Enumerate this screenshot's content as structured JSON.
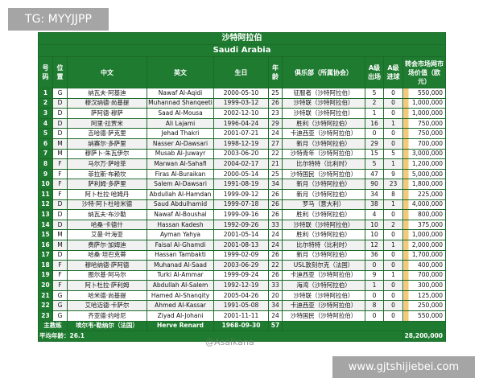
{
  "watermarks": {
    "top_left": "TG: MYYJJPP",
    "bottom_right": "www.gjtshijiebei.com",
    "center": "@Asaikana"
  },
  "table": {
    "title_cn": "沙特阿拉伯",
    "title_en": "Saudi Arabia",
    "header": [
      "号码",
      "位置",
      "中文",
      "英文",
      "生日",
      "年龄",
      "俱乐部（所属协会）",
      "A级出场",
      "A级进球",
      "转会市场网市场价值（欧元）"
    ],
    "rows": [
      [
        1,
        "G",
        "纳瓦夫·阿基迪",
        "Nawaf Al-Aqidi",
        "2000-05-10",
        25,
        "征服者（沙特阿拉伯）",
        5,
        0,
        "550,000"
      ],
      [
        2,
        "D",
        "穆汉纳德·尚基提",
        "Muhannad Shanqeeti",
        "1999-03-12",
        26,
        "沙特联（沙特阿拉伯）",
        2,
        0,
        "1,000,000"
      ],
      [
        3,
        "D",
        "萨阿德·穆萨",
        "Saad Al-Mousa",
        "2002-12-10",
        23,
        "沙特联（沙特阿拉伯）",
        1,
        0,
        "1,000,000"
      ],
      [
        4,
        "D",
        "阿里·拉贾米",
        "Ali Lajami",
        "1996-04-24",
        29,
        "胜利（沙特阿拉伯）",
        16,
        1,
        "750,000"
      ],
      [
        5,
        "D",
        "吉哈德·萨克里",
        "Jehad Thakri",
        "2001-07-21",
        24,
        "卡迪西亚（沙特阿拉伯）",
        0,
        0,
        "750,000"
      ],
      [
        6,
        "M",
        "纳赛尔·多萨里",
        "Nasser Al-Dawsari",
        "1998-12-19",
        27,
        "新月（沙特阿拉伯）",
        29,
        0,
        "700,000"
      ],
      [
        7,
        "M",
        "穆萨卜·朱瓦伊尔",
        "Musab Al-Juwayr",
        "2003-06-20",
        22,
        "沙特青年（沙特阿拉伯）",
        15,
        5,
        "3,000,000"
      ],
      [
        8,
        "F",
        "马尔万·萨哈菲",
        "Marwan Al-Sahafi",
        "2004-02-17",
        21,
        "比尔特特（比利时）",
        5,
        1,
        "1,200,000"
      ],
      [
        9,
        "F",
        "菲拉斯·布赖坎",
        "Firas Al-Buraikan",
        "2000-05-14",
        25,
        "沙特国民（沙特阿拉伯）",
        47,
        9,
        "5,000,000"
      ],
      [
        10,
        "F",
        "萨利姆·多萨里",
        "Salem Al-Dawsari",
        "1991-08-19",
        34,
        "新月（沙特阿拉伯）",
        90,
        23,
        "1,800,000"
      ],
      [
        11,
        "F",
        "阿卜杜拉·哈姆丹",
        "Abdullah Al-Hamdan",
        "1999-09-12",
        26,
        "新月（沙特阿拉伯）",
        34,
        8,
        "225,000"
      ],
      [
        12,
        "D",
        "沙特·阿卜杜哈米德",
        "Saud Abdulhamid",
        "1999-07-18",
        26,
        "罗马（意大利）",
        38,
        1,
        "4,000,000"
      ],
      [
        13,
        "D",
        "纳瓦夫·布沙勒",
        "Nawaf Al-Boushal",
        "1999-09-16",
        26,
        "胜利（沙特阿拉伯）",
        4,
        0,
        "800,000"
      ],
      [
        14,
        "D",
        "哈桑·卡德什",
        "Hassan Kadesh",
        "1992-09-26",
        33,
        "沙特联（沙特阿拉伯）",
        10,
        2,
        "375,000"
      ],
      [
        15,
        "M",
        "艾曼·叶海亚",
        "Ayman Yahya",
        "2001-05-14",
        24,
        "胜利（沙特阿拉伯）",
        10,
        0,
        "1,000,000"
      ],
      [
        16,
        "M",
        "费萨尔·加姆迪",
        "Faisal Al-Ghamdi",
        "2001-08-13",
        24,
        "比尔特特（比利时）",
        12,
        1,
        "2,000,000"
      ],
      [
        17,
        "D",
        "哈桑·坦巴克蒂",
        "Hassan Tambakti",
        "1999-02-09",
        26,
        "新月（沙特阿拉伯）",
        36,
        0,
        "1,700,000"
      ],
      [
        18,
        "F",
        "穆哈纳德·萨阿德",
        "Muhanad Al-Saad",
        "2003-06-29",
        22,
        "USL敦刻尔克（法国）",
        0,
        0,
        "400,000"
      ],
      [
        19,
        "F",
        "图尔基·阿马尔",
        "Turki Al-Ammar",
        "1999-09-24",
        26,
        "卡迪西亚（沙特阿拉伯）",
        9,
        1,
        "700,000"
      ],
      [
        20,
        "F",
        "阿卜杜拉·萨利姆",
        "Abdullah Al-Salem",
        "1992-12-19",
        33,
        "海湾（沙特阿拉伯）",
        1,
        0,
        "300,000"
      ],
      [
        21,
        "G",
        "哈米德·尚基提",
        "Hamed Al-Shanqity",
        "2005-04-26",
        20,
        "沙特联（沙特阿拉伯）",
        0,
        0,
        "125,000"
      ],
      [
        22,
        "G",
        "艾哈迈德·卡萨尔",
        "Ahmed Al-Kassar",
        "1991-05-08",
        34,
        "卡迪西亚（沙特阿拉伯）",
        8,
        0,
        "250,000"
      ],
      [
        23,
        "G",
        "齐亚德·约哈尼",
        "Ziyad Al-Johani",
        "2001-11-11",
        24,
        "沙特国民（沙特阿拉伯）",
        0,
        0,
        "550,000"
      ]
    ],
    "coach": [
      "主教练",
      "埃尔韦·勒纳尔（法国）",
      "Herve Renard",
      "1968-09-30",
      57
    ],
    "footer": {
      "average_age": "平均年龄：26.1",
      "total": "28,200,000"
    }
  }
}
